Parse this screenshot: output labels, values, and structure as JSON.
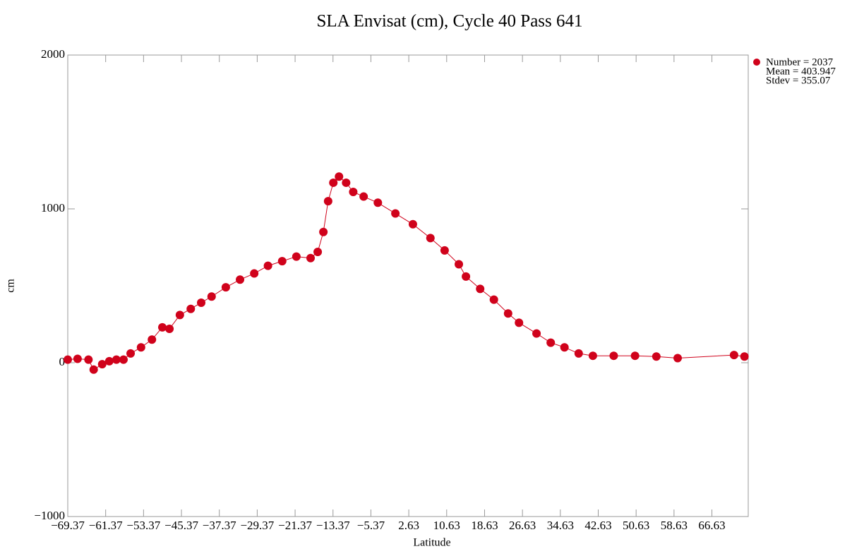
{
  "chart_data": {
    "type": "scatter",
    "title": "SLA Envisat (cm), Cycle 40 Pass 641",
    "xlabel": "Latitude",
    "ylabel": "cm",
    "color": "#d0021b",
    "legend": [
      "Number = 2037",
      "Mean = 403.947",
      "Stdev = 355.07"
    ],
    "legend_position": "upper right outside",
    "xlim": [
      -69.37,
      74.3
    ],
    "ylim": [
      -1000,
      2000
    ],
    "xticks": [
      {
        "value": -69.37,
        "label": "−69.37"
      },
      {
        "value": -61.37,
        "label": "−61.37"
      },
      {
        "value": -53.37,
        "label": "−53.37"
      },
      {
        "value": -45.37,
        "label": "−45.37"
      },
      {
        "value": -37.37,
        "label": "−37.37"
      },
      {
        "value": -29.37,
        "label": "−29.37"
      },
      {
        "value": -21.37,
        "label": "−21.37"
      },
      {
        "value": -13.37,
        "label": "−13.37"
      },
      {
        "value": -5.37,
        "label": "−5.37"
      },
      2.63,
      10.63,
      18.63,
      26.63,
      34.63,
      42.63,
      50.63,
      58.63,
      66.63
    ],
    "yticks": [
      {
        "value": -1000,
        "label": "−1000"
      },
      0,
      1000,
      2000
    ],
    "x": [
      -69.37,
      -67.3,
      -65.0,
      -63.9,
      -62.1,
      -60.6,
      -59.1,
      -57.6,
      -56.1,
      -53.9,
      -51.6,
      -49.4,
      -47.9,
      -45.7,
      -43.4,
      -41.2,
      -39.0,
      -36.0,
      -33.0,
      -30.0,
      -27.1,
      -24.1,
      -21.1,
      -18.1,
      -16.6,
      -15.4,
      -14.4,
      -13.3,
      -12.1,
      -10.6,
      -9.1,
      -6.9,
      -3.9,
      -0.2,
      3.5,
      7.2,
      10.2,
      13.2,
      14.7,
      17.7,
      20.6,
      23.6,
      25.9,
      29.6,
      32.6,
      35.5,
      38.5,
      41.5,
      45.9,
      50.4,
      54.9,
      59.4,
      71.3,
      73.5
    ],
    "values": [
      20,
      25,
      20,
      -45,
      -10,
      10,
      20,
      20,
      60,
      100,
      150,
      230,
      220,
      310,
      350,
      390,
      430,
      490,
      540,
      580,
      630,
      660,
      690,
      680,
      720,
      850,
      1050,
      1170,
      1210,
      1170,
      1110,
      1080,
      1040,
      970,
      900,
      810,
      730,
      640,
      560,
      480,
      410,
      320,
      260,
      190,
      130,
      100,
      60,
      45,
      45,
      45,
      40,
      30,
      50,
      40
    ]
  }
}
